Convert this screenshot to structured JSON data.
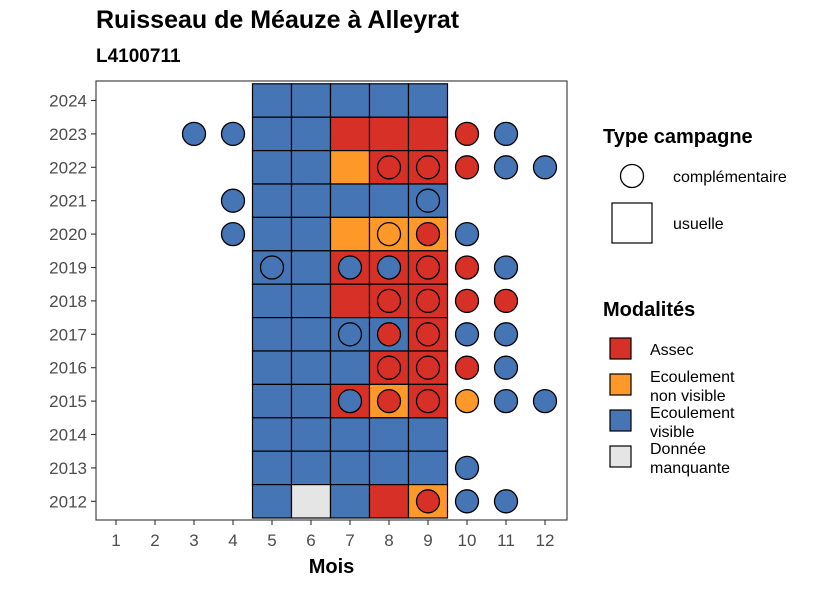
{
  "title": "Ruisseau de Méauze à Alleyrat",
  "subtitle": "L4100711",
  "chart_data": {
    "type": "heatmap",
    "xlabel": "Mois",
    "x_ticks": [
      "1",
      "2",
      "3",
      "4",
      "5",
      "6",
      "7",
      "8",
      "9",
      "10",
      "11",
      "12"
    ],
    "y_ticks": [
      "2012",
      "2013",
      "2014",
      "2015",
      "2016",
      "2017",
      "2018",
      "2019",
      "2020",
      "2021",
      "2022",
      "2023",
      "2024"
    ],
    "colors": {
      "Assec": "#d73027",
      "Ecoulement non visible": "#fe9929",
      "Ecoulement visible": "#4575b4",
      "Donnée manquante": "#e5e5e5"
    },
    "usuelle": [
      {
        "year": 2024,
        "months": [
          "Ecoulement visible",
          "Ecoulement visible",
          "Ecoulement visible",
          "Ecoulement visible",
          "Ecoulement visible"
        ]
      },
      {
        "year": 2023,
        "months": [
          "Ecoulement visible",
          "Ecoulement visible",
          "Assec",
          "Assec",
          "Assec"
        ]
      },
      {
        "year": 2022,
        "months": [
          "Ecoulement visible",
          "Ecoulement visible",
          "Ecoulement non visible",
          "Assec",
          "Assec"
        ]
      },
      {
        "year": 2021,
        "months": [
          "Ecoulement visible",
          "Ecoulement visible",
          "Ecoulement visible",
          "Ecoulement visible",
          "Ecoulement visible"
        ]
      },
      {
        "year": 2020,
        "months": [
          "Ecoulement visible",
          "Ecoulement visible",
          "Ecoulement non visible",
          "Ecoulement non visible",
          "Ecoulement non visible"
        ]
      },
      {
        "year": 2019,
        "months": [
          "Ecoulement visible",
          "Ecoulement visible",
          "Assec",
          "Assec",
          "Assec"
        ]
      },
      {
        "year": 2018,
        "months": [
          "Ecoulement visible",
          "Ecoulement visible",
          "Assec",
          "Assec",
          "Assec"
        ]
      },
      {
        "year": 2017,
        "months": [
          "Ecoulement visible",
          "Ecoulement visible",
          "Ecoulement visible",
          "Ecoulement visible",
          "Assec"
        ]
      },
      {
        "year": 2016,
        "months": [
          "Ecoulement visible",
          "Ecoulement visible",
          "Ecoulement visible",
          "Assec",
          "Assec"
        ]
      },
      {
        "year": 2015,
        "months": [
          "Ecoulement visible",
          "Ecoulement visible",
          "Assec",
          "Ecoulement non visible",
          "Assec"
        ]
      },
      {
        "year": 2014,
        "months": [
          "Ecoulement visible",
          "Ecoulement visible",
          "Ecoulement visible",
          "Ecoulement visible",
          "Ecoulement visible"
        ]
      },
      {
        "year": 2013,
        "months": [
          "Ecoulement visible",
          "Ecoulement visible",
          "Ecoulement visible",
          "Ecoulement visible",
          "Ecoulement visible"
        ]
      },
      {
        "year": 2012,
        "months": [
          "Ecoulement visible",
          "Donnée manquante",
          "Ecoulement visible",
          "Assec",
          "Ecoulement non visible"
        ]
      }
    ],
    "usuelle_month_start": 5,
    "complementaire": [
      {
        "year": 2023,
        "month": 3,
        "status": "Ecoulement visible"
      },
      {
        "year": 2023,
        "month": 4,
        "status": "Ecoulement visible"
      },
      {
        "year": 2023,
        "month": 10,
        "status": "Assec"
      },
      {
        "year": 2023,
        "month": 11,
        "status": "Ecoulement visible"
      },
      {
        "year": 2022,
        "month": 8,
        "status": "Assec"
      },
      {
        "year": 2022,
        "month": 9,
        "status": "Assec"
      },
      {
        "year": 2022,
        "month": 10,
        "status": "Assec"
      },
      {
        "year": 2022,
        "month": 11,
        "status": "Ecoulement visible"
      },
      {
        "year": 2022,
        "month": 12,
        "status": "Ecoulement visible"
      },
      {
        "year": 2021,
        "month": 4,
        "status": "Ecoulement visible"
      },
      {
        "year": 2021,
        "month": 9,
        "status": "Ecoulement visible"
      },
      {
        "year": 2020,
        "month": 4,
        "status": "Ecoulement visible"
      },
      {
        "year": 2020,
        "month": 8,
        "status": "Ecoulement non visible"
      },
      {
        "year": 2020,
        "month": 9,
        "status": "Assec"
      },
      {
        "year": 2020,
        "month": 10,
        "status": "Ecoulement visible"
      },
      {
        "year": 2019,
        "month": 5,
        "status": "Ecoulement visible"
      },
      {
        "year": 2019,
        "month": 7,
        "status": "Ecoulement visible"
      },
      {
        "year": 2019,
        "month": 8,
        "status": "Ecoulement visible"
      },
      {
        "year": 2019,
        "month": 9,
        "status": "Assec"
      },
      {
        "year": 2019,
        "month": 10,
        "status": "Assec"
      },
      {
        "year": 2019,
        "month": 11,
        "status": "Ecoulement visible"
      },
      {
        "year": 2018,
        "month": 8,
        "status": "Assec"
      },
      {
        "year": 2018,
        "month": 9,
        "status": "Assec"
      },
      {
        "year": 2018,
        "month": 10,
        "status": "Assec"
      },
      {
        "year": 2018,
        "month": 11,
        "status": "Assec"
      },
      {
        "year": 2017,
        "month": 7,
        "status": "Ecoulement visible"
      },
      {
        "year": 2017,
        "month": 8,
        "status": "Assec"
      },
      {
        "year": 2017,
        "month": 9,
        "status": "Assec"
      },
      {
        "year": 2017,
        "month": 10,
        "status": "Ecoulement visible"
      },
      {
        "year": 2017,
        "month": 11,
        "status": "Ecoulement visible"
      },
      {
        "year": 2016,
        "month": 8,
        "status": "Assec"
      },
      {
        "year": 2016,
        "month": 9,
        "status": "Assec"
      },
      {
        "year": 2016,
        "month": 10,
        "status": "Assec"
      },
      {
        "year": 2016,
        "month": 11,
        "status": "Ecoulement visible"
      },
      {
        "year": 2015,
        "month": 7,
        "status": "Ecoulement visible"
      },
      {
        "year": 2015,
        "month": 8,
        "status": "Assec"
      },
      {
        "year": 2015,
        "month": 9,
        "status": "Assec"
      },
      {
        "year": 2015,
        "month": 10,
        "status": "Ecoulement non visible"
      },
      {
        "year": 2015,
        "month": 11,
        "status": "Ecoulement visible"
      },
      {
        "year": 2015,
        "month": 12,
        "status": "Ecoulement visible"
      },
      {
        "year": 2013,
        "month": 10,
        "status": "Ecoulement visible"
      },
      {
        "year": 2012,
        "month": 9,
        "status": "Assec"
      },
      {
        "year": 2012,
        "month": 10,
        "status": "Ecoulement visible"
      },
      {
        "year": 2012,
        "month": 11,
        "status": "Ecoulement visible"
      }
    ],
    "legend": {
      "type_title": "Type campagne",
      "type_items": [
        "complémentaire",
        "usuelle"
      ],
      "modalites_title": "Modalités",
      "modalites_items": [
        {
          "lines": [
            "Assec"
          ],
          "key": "Assec"
        },
        {
          "lines": [
            "Ecoulement",
            "non visible"
          ],
          "key": "Ecoulement non visible"
        },
        {
          "lines": [
            "Ecoulement",
            "visible"
          ],
          "key": "Ecoulement visible"
        },
        {
          "lines": [
            "Donnée",
            "manquante"
          ],
          "key": "Donnée manquante"
        }
      ],
      "placement": "right"
    },
    "grid": false
  }
}
